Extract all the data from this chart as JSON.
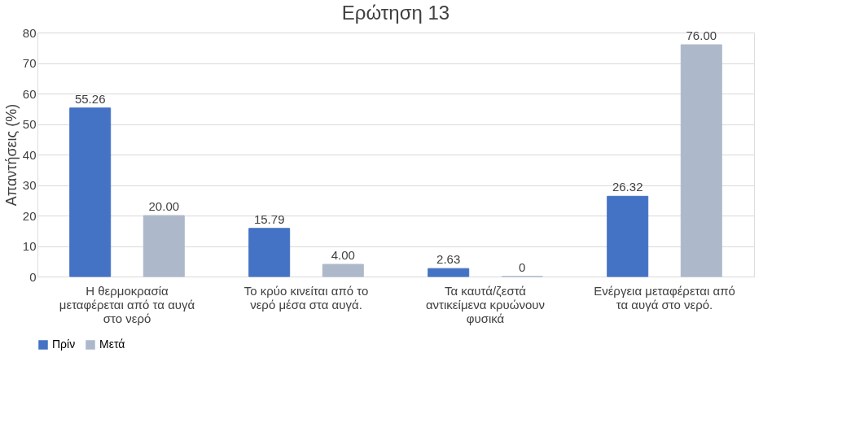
{
  "chart_data": {
    "type": "bar",
    "title": "Ερώτηση 13",
    "ylabel": "Απαντήσεις  (%)",
    "categories": [
      "Η θερμοκρασία μεταφέρεται από τα αυγά στο νερό",
      "Το κρύο κινείται από το νερό μέσα στα αυγά.",
      "Τα καυτά/ζεστά αντικείμενα κρυώνουν φυσικά",
      "Ενέργεια μεταφέρεται από τα αυγά στο νερό."
    ],
    "series": [
      {
        "name": "Πρίν",
        "color": "#4472c4",
        "values": [
          55.26,
          15.79,
          2.63,
          26.32
        ],
        "value_labels": [
          "55.26",
          "15.79",
          "2.63",
          "26.32"
        ]
      },
      {
        "name": "Μετά",
        "color": "#adb9ca",
        "values": [
          20,
          4,
          0,
          76
        ],
        "value_labels": [
          "20.00",
          "4.00",
          "0",
          "76.00"
        ]
      }
    ],
    "ylim": [
      0,
      80
    ],
    "yticks": [
      0,
      10,
      20,
      30,
      40,
      50,
      60,
      70,
      80
    ],
    "grid": "y",
    "legend": "bottom"
  }
}
